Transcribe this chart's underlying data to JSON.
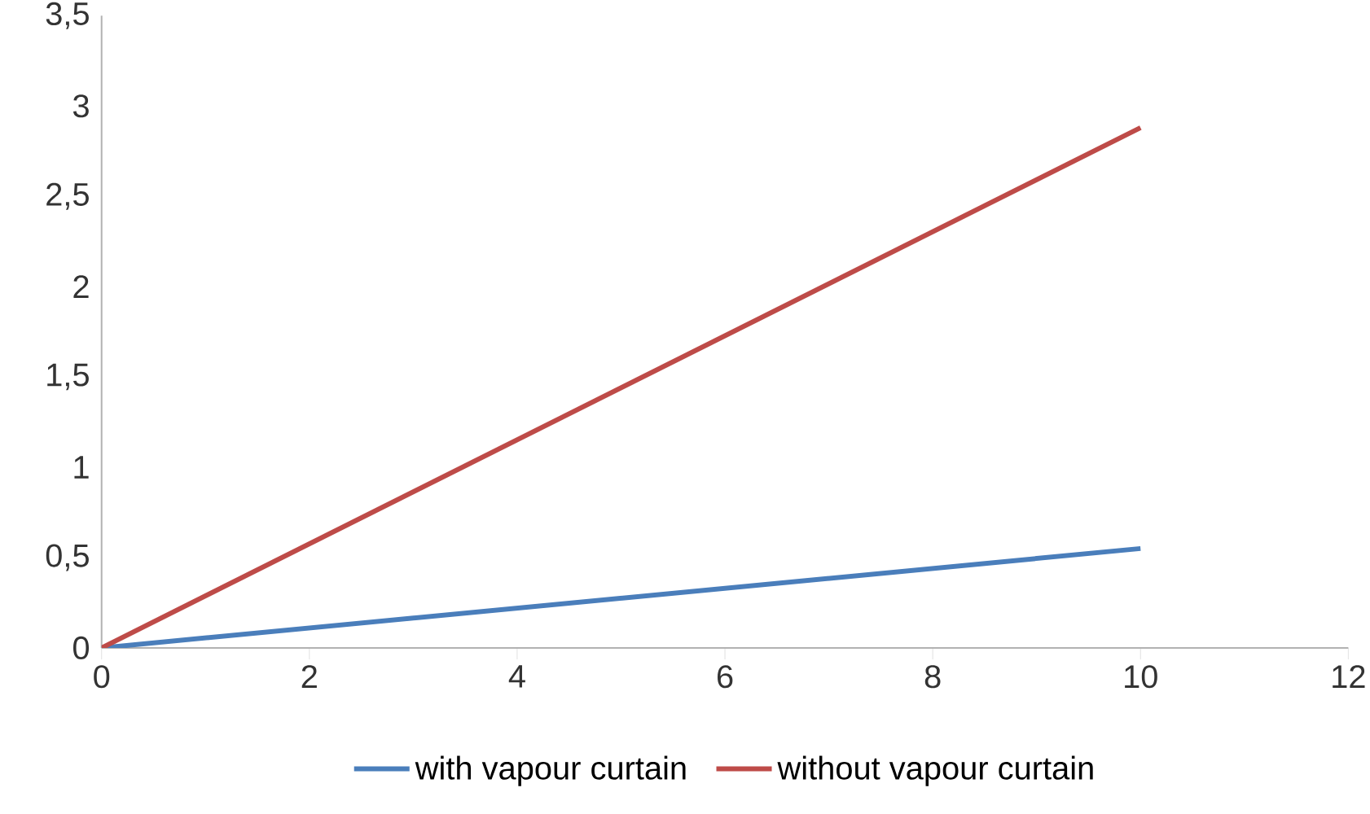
{
  "chart_data": {
    "type": "line",
    "x": [
      0,
      10
    ],
    "series": [
      {
        "name": "with vapour curtain",
        "color": "#4a7ebb",
        "values": [
          0,
          0.55
        ]
      },
      {
        "name": "without vapour curtain",
        "color": "#be4b48",
        "values": [
          0,
          2.88
        ]
      }
    ],
    "xlim": [
      0,
      12
    ],
    "xticks": [
      0,
      2,
      4,
      6,
      8,
      10,
      12
    ],
    "ylim": [
      0,
      3.5
    ],
    "yticks": [
      0,
      {
        "value": 0.5,
        "label": "0,5"
      },
      1,
      {
        "value": 1.5,
        "label": "1,5"
      },
      2,
      {
        "value": 2.5,
        "label": "2,5"
      },
      3,
      {
        "value": 3.5,
        "label": "3,5"
      }
    ],
    "grid": false,
    "legend": "bottom",
    "marker": "none",
    "line_style": "solid"
  }
}
